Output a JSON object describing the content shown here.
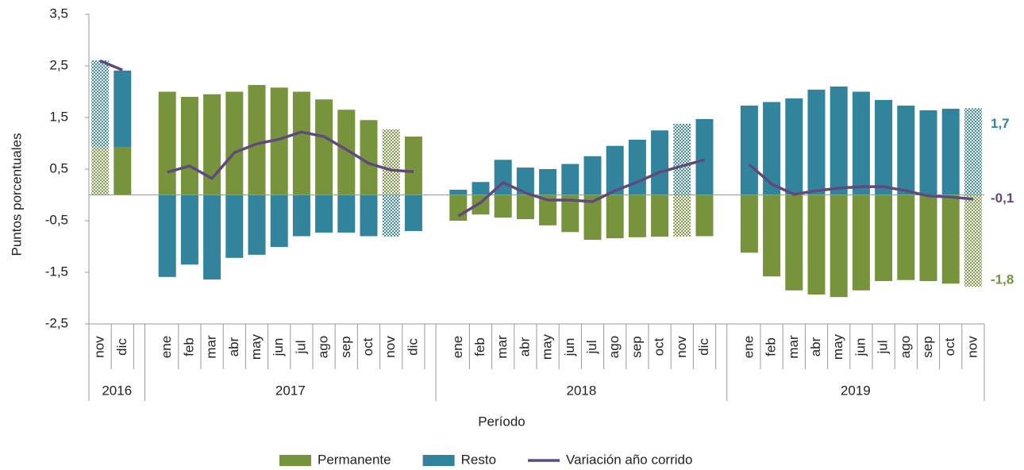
{
  "chart_data": {
    "type": "bar",
    "stacked": true,
    "y_label": "Puntos porcentuales",
    "x_label": "Período",
    "groups": [
      {
        "name": "2016",
        "categories": [
          "nov",
          "dic"
        ]
      },
      {
        "name": "2017",
        "categories": [
          "ene",
          "feb",
          "mar",
          "abr",
          "may",
          "jun",
          "jul",
          "ago",
          "sep",
          "oct",
          "nov",
          "dic"
        ]
      },
      {
        "name": "2018",
        "categories": [
          "ene",
          "feb",
          "mar",
          "abr",
          "may",
          "jun",
          "jul",
          "ago",
          "sep",
          "oct",
          "nov",
          "dic"
        ]
      },
      {
        "name": "2019",
        "categories": [
          "ene",
          "feb",
          "mar",
          "abr",
          "may",
          "jun",
          "jul",
          "ago",
          "sep",
          "oct",
          "nov"
        ]
      }
    ],
    "pattern_category": "nov",
    "series": [
      {
        "name": "Permanente",
        "color": "#77933c",
        "end_label": "-1,8",
        "values": [
          0.92,
          0.93,
          2.0,
          1.9,
          1.95,
          2.0,
          2.13,
          2.08,
          2.0,
          1.85,
          1.65,
          1.45,
          1.27,
          1.13,
          -0.5,
          -0.38,
          -0.44,
          -0.47,
          -0.59,
          -0.72,
          -0.87,
          -0.84,
          -0.82,
          -0.81,
          -0.81,
          -0.8,
          -1.12,
          -1.58,
          -1.85,
          -1.93,
          -1.98,
          -1.85,
          -1.67,
          -1.65,
          -1.67,
          -1.72,
          -1.78
        ]
      },
      {
        "name": "Resto",
        "color": "#31849b",
        "end_label": "1,7",
        "values": [
          1.69,
          1.48,
          -1.59,
          -1.35,
          -1.64,
          -1.22,
          -1.16,
          -1.01,
          -0.8,
          -0.73,
          -0.73,
          -0.8,
          -0.81,
          -0.7,
          0.1,
          0.25,
          0.68,
          0.53,
          0.5,
          0.6,
          0.75,
          0.95,
          1.07,
          1.25,
          1.38,
          1.47,
          1.73,
          1.8,
          1.87,
          2.04,
          2.1,
          2.0,
          1.84,
          1.73,
          1.64,
          1.67,
          1.68
        ]
      },
      {
        "name": "Variación año corrido",
        "type": "line",
        "color": "#604a7b",
        "end_label": "-0,1",
        "values": [
          2.6,
          2.42,
          0.44,
          0.56,
          0.32,
          0.82,
          0.99,
          1.08,
          1.22,
          1.13,
          0.88,
          0.61,
          0.48,
          0.45,
          -0.41,
          -0.15,
          0.24,
          0.04,
          -0.1,
          -0.1,
          -0.13,
          0.08,
          0.25,
          0.44,
          0.56,
          0.68,
          0.59,
          0.21,
          0.01,
          0.08,
          0.13,
          0.16,
          0.16,
          0.08,
          -0.02,
          -0.04,
          -0.08
        ]
      }
    ],
    "ylim": [
      -2.5,
      3.5
    ],
    "yticks": [
      {
        "value": -2.5,
        "label": "-2,5"
      },
      {
        "value": -1.5,
        "label": "-1,5"
      },
      {
        "value": -0.5,
        "label": "-0,5"
      },
      {
        "value": 0.5,
        "label": "0,5"
      },
      {
        "value": 1.5,
        "label": "1,5"
      },
      {
        "value": 2.5,
        "label": "2,5"
      },
      {
        "value": 3.5,
        "label": "3,5"
      }
    ],
    "legend": "bottom"
  }
}
